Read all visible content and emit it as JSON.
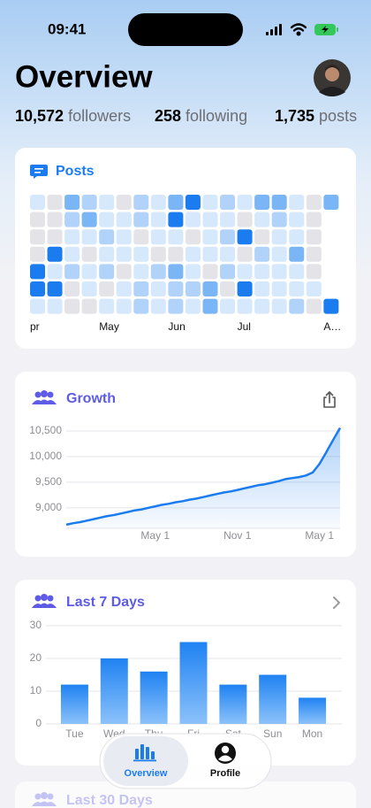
{
  "status_bar": {
    "time": "09:41"
  },
  "header": {
    "title": "Overview"
  },
  "stats": [
    {
      "value": "10,572",
      "label": "followers"
    },
    {
      "value": "258",
      "label": "following"
    },
    {
      "value": "1,735",
      "label": "posts"
    }
  ],
  "chart_data": [
    {
      "type": "heatmap",
      "title": "Posts",
      "columns": [
        "pr",
        null,
        null,
        null,
        "May",
        null,
        null,
        null,
        "Jun",
        null,
        null,
        null,
        "Jul",
        null,
        null,
        null,
        null,
        "A…"
      ],
      "values": [
        [
          1,
          0,
          3,
          2,
          1,
          0,
          2,
          1,
          3,
          4,
          1,
          2,
          1,
          3,
          3,
          1,
          0,
          3
        ],
        [
          0,
          0,
          2,
          3,
          1,
          1,
          2,
          1,
          4,
          1,
          1,
          1,
          0,
          1,
          2,
          1,
          0,
          null
        ],
        [
          0,
          0,
          1,
          1,
          2,
          1,
          0,
          1,
          1,
          0,
          1,
          2,
          4,
          0,
          1,
          1,
          0,
          null
        ],
        [
          0,
          4,
          1,
          0,
          1,
          1,
          1,
          0,
          0,
          1,
          1,
          1,
          0,
          2,
          1,
          3,
          0,
          null
        ],
        [
          4,
          1,
          2,
          1,
          2,
          0,
          1,
          2,
          3,
          1,
          0,
          2,
          1,
          1,
          1,
          1,
          0,
          null
        ],
        [
          4,
          4,
          0,
          1,
          0,
          1,
          2,
          1,
          2,
          2,
          3,
          0,
          4,
          1,
          1,
          1,
          1,
          null
        ],
        [
          1,
          1,
          0,
          0,
          1,
          1,
          2,
          1,
          2,
          1,
          3,
          1,
          1,
          1,
          1,
          2,
          0,
          4
        ]
      ],
      "colors": [
        "#e3e3e8",
        "#d6e8fc",
        "#b1d3fa",
        "#7ab5f5",
        "#1b7cf0"
      ]
    },
    {
      "type": "line",
      "title": "Growth",
      "categories": [
        null,
        null,
        null,
        null,
        null,
        null,
        null,
        null,
        null,
        null,
        null,
        null,
        null,
        "May 1",
        null,
        null,
        null,
        null,
        null,
        null,
        null,
        null,
        null,
        null,
        null,
        "Nov 1",
        null,
        null,
        null,
        null,
        null,
        null,
        null,
        null,
        null,
        null,
        null,
        "May 1",
        null,
        null,
        null
      ],
      "values": [
        8670,
        8700,
        8720,
        8750,
        8780,
        8810,
        8840,
        8860,
        8890,
        8920,
        8950,
        8970,
        9000,
        9030,
        9060,
        9080,
        9110,
        9130,
        9160,
        9180,
        9210,
        9240,
        9270,
        9300,
        9320,
        9350,
        9380,
        9410,
        9440,
        9460,
        9490,
        9520,
        9560,
        9580,
        9600,
        9630,
        9690,
        9860,
        10090,
        10330,
        10560
      ],
      "color": "#1b7cf0",
      "ylim": [
        8600,
        10620
      ],
      "yticks": [
        {
          "value": 9000,
          "label": "9,000"
        },
        {
          "value": 9500,
          "label": "9,500"
        },
        {
          "value": 10000,
          "label": "10,000"
        },
        {
          "value": 10500,
          "label": "10,500"
        }
      ],
      "grid": true
    },
    {
      "type": "bar",
      "title": "Last 7 Days",
      "categories": [
        "Tue",
        "Wed",
        "Thu",
        "Fri",
        "Sat",
        "Sun",
        "Mon"
      ],
      "values": [
        12,
        20,
        16,
        25,
        12,
        15,
        8
      ],
      "color": "#2a8af4",
      "ylim": [
        0,
        30
      ],
      "yticks": [
        0,
        10,
        20,
        30
      ],
      "grid": true
    }
  ],
  "next_card": {
    "title": "Last 30 Days"
  },
  "tab_bar": {
    "tabs": [
      "Overview",
      "Profile"
    ]
  }
}
